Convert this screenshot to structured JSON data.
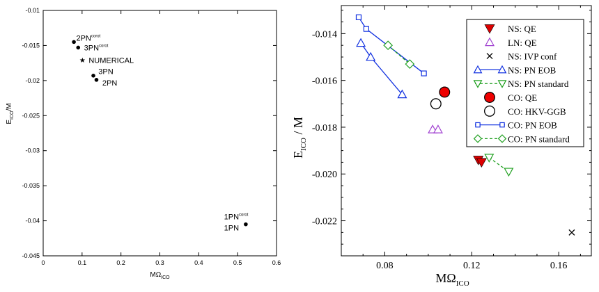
{
  "chart_data": [
    {
      "type": "scatter",
      "title": "",
      "xlabel": "MΩ",
      "xlabel_sub": "ICO",
      "ylabel": "E",
      "ylabel_sub": "ICO",
      "ylabel_tail": "/M",
      "xlim": [
        0,
        0.6
      ],
      "ylim": [
        -0.045,
        -0.01
      ],
      "xticks": [
        0,
        0.1,
        0.2,
        0.3,
        0.4,
        0.5,
        0.6
      ],
      "xtick_labels": [
        "0",
        "0.1",
        "0.2",
        "0.3",
        "0.4",
        "0.5",
        "0.6"
      ],
      "yticks": [
        -0.045,
        -0.04,
        -0.035,
        -0.03,
        -0.025,
        -0.02,
        -0.015,
        -0.01
      ],
      "ytick_labels": [
        "-0.045",
        "-0.04",
        "-0.035",
        "-0.03",
        "-0.025",
        "-0.02",
        "-0.015",
        "-0.01"
      ],
      "grid": false,
      "points": [
        {
          "label": "2PN",
          "sup": "corot",
          "x": 0.079,
          "y": -0.0145,
          "marker": "dot"
        },
        {
          "label": "3PN",
          "sup": "corot",
          "x": 0.09,
          "y": -0.0153,
          "marker": "dot"
        },
        {
          "label": "NUMERICAL",
          "sup": "",
          "x": 0.101,
          "y": -0.0171,
          "marker": "star"
        },
        {
          "label": "3PN",
          "sup": "",
          "x": 0.129,
          "y": -0.0193,
          "marker": "dot"
        },
        {
          "label": "2PN",
          "sup": "",
          "x": 0.137,
          "y": -0.0199,
          "marker": "dot"
        },
        {
          "label": "1PN",
          "sup": "corot",
          "x": 0.521,
          "y": -0.0405,
          "marker": "dot"
        }
      ],
      "point_labels": [
        {
          "text": "2PN",
          "sup": "corot",
          "x": 0.085,
          "y": -0.0139
        },
        {
          "text": "3PN",
          "sup": "corot",
          "x": 0.105,
          "y": -0.0153
        },
        {
          "text": "NUMERICAL",
          "sup": "",
          "x": 0.117,
          "y": -0.0171
        },
        {
          "text": "3PN",
          "sup": "",
          "x": 0.142,
          "y": -0.0187
        },
        {
          "text": "2PN",
          "sup": "",
          "x": 0.152,
          "y": -0.0203
        },
        {
          "text": "1PN",
          "sup": "corot",
          "x": 0.465,
          "y": -0.0394
        },
        {
          "text": "1PN",
          "sup": "",
          "x": 0.465,
          "y": -0.041
        }
      ]
    },
    {
      "type": "scatter",
      "title": "",
      "xlabel": "MΩ",
      "xlabel_sub": "ICO",
      "ylabel": "E",
      "ylabel_sub": "ICO",
      "ylabel_tail": " / M",
      "xlim": [
        0.06,
        0.175
      ],
      "ylim": [
        -0.0235,
        -0.0128
      ],
      "xticks": [
        0.08,
        0.12,
        0.16
      ],
      "xtick_labels": [
        "0.08",
        "0.12",
        "0.16"
      ],
      "yticks": [
        -0.022,
        -0.02,
        -0.018,
        -0.016,
        -0.014
      ],
      "ytick_labels": [
        "-0.022",
        "-0.020",
        "-0.018",
        "-0.016",
        "-0.014"
      ],
      "grid": false,
      "legend_position": "top-right",
      "series": [
        {
          "name": "NS: QE",
          "marker": "triangle-down-filled",
          "color": "#dd0000",
          "line": "none",
          "points": [
            [
              0.123,
              -0.0194
            ],
            [
              0.1245,
              -0.0195
            ]
          ]
        },
        {
          "name": "LN: QE",
          "marker": "triangle-up-open",
          "color": "#a040d0",
          "line": "none",
          "points": [
            [
              0.102,
              -0.0181
            ],
            [
              0.1045,
              -0.0181
            ]
          ]
        },
        {
          "name": "NS: IVP conf",
          "marker": "cross",
          "color": "#000000",
          "line": "none",
          "points": [
            [
              0.166,
              -0.0225
            ]
          ]
        },
        {
          "name": "NS: PN EOB",
          "marker": "triangle-up-open",
          "color": "#1030e0",
          "line": "solid",
          "points": [
            [
              0.069,
              -0.0144
            ],
            [
              0.0735,
              -0.015
            ],
            [
              0.088,
              -0.0166
            ]
          ]
        },
        {
          "name": "NS: PN standard",
          "marker": "triangle-down-open",
          "color": "#20a020",
          "line": "dashed",
          "points": [
            [
              0.128,
              -0.0193
            ],
            [
              0.137,
              -0.0199
            ]
          ]
        },
        {
          "name": "CO: QE",
          "marker": "circle-filled",
          "color": "#ee0000",
          "line": "none",
          "points": [
            [
              0.1075,
              -0.0165
            ]
          ]
        },
        {
          "name": "CO: HKV-GGB",
          "marker": "circle-open",
          "color": "#000000",
          "line": "none",
          "points": [
            [
              0.1035,
              -0.017
            ]
          ]
        },
        {
          "name": "CO: PN EOB",
          "marker": "square-open",
          "color": "#1030e0",
          "line": "solid",
          "points": [
            [
              0.068,
              -0.0133
            ],
            [
              0.0715,
              -0.0138
            ],
            [
              0.098,
              -0.0157
            ]
          ]
        },
        {
          "name": "CO: PN standard",
          "marker": "diamond-open",
          "color": "#20a020",
          "line": "dashed",
          "points": [
            [
              0.0815,
              -0.0145
            ],
            [
              0.0915,
              -0.0153
            ]
          ]
        }
      ]
    }
  ]
}
